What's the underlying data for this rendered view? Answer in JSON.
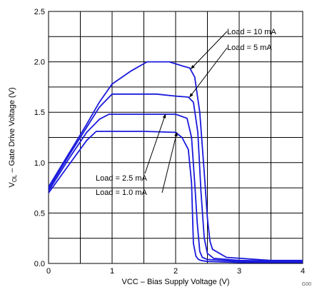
{
  "chart_data": {
    "type": "line",
    "xlabel": "VCC – Bias Supply Voltage (V)",
    "ylabel_main": "V",
    "ylabel_sub": "OL",
    "ylabel_rest": " – Gate Drive Voltage (V)",
    "xlim": [
      0,
      4
    ],
    "ylim": [
      0,
      2.5
    ],
    "x_ticks": [
      "0",
      "1",
      "2",
      "3",
      "4"
    ],
    "y_ticks": [
      "0.0",
      "0.5",
      "1.0",
      "1.5",
      "2.0",
      "2.5"
    ],
    "x_grid_step": 0.5,
    "y_grid_step": 0.25,
    "grid": true,
    "line_color": "#1a1adc",
    "series": [
      {
        "name": "Load = 10 mA",
        "x": [
          0,
          0.3,
          0.6,
          0.8,
          1.0,
          1.3,
          1.55,
          1.9,
          2.1,
          2.22,
          2.3,
          2.38,
          2.45,
          2.5,
          2.54,
          2.58,
          2.8,
          3.5,
          4.0
        ],
        "y": [
          0.76,
          1.07,
          1.38,
          1.6,
          1.78,
          1.91,
          2.0,
          2.0,
          1.96,
          1.94,
          1.85,
          1.5,
          0.9,
          0.45,
          0.22,
          0.14,
          0.06,
          0.03,
          0.03
        ]
      },
      {
        "name": "Load = 5 mA",
        "x": [
          0,
          0.3,
          0.6,
          0.8,
          1.0,
          1.3,
          1.7,
          2.0,
          2.2,
          2.28,
          2.35,
          2.4,
          2.45,
          2.5,
          2.6,
          3.0,
          4.0
        ],
        "y": [
          0.74,
          1.05,
          1.35,
          1.55,
          1.68,
          1.68,
          1.68,
          1.66,
          1.65,
          1.6,
          1.3,
          0.7,
          0.25,
          0.1,
          0.05,
          0.03,
          0.02
        ]
      },
      {
        "name": "Load = 2.5 mA",
        "x": [
          0,
          0.3,
          0.6,
          0.8,
          0.95,
          1.2,
          1.6,
          2.0,
          2.18,
          2.25,
          2.3,
          2.34,
          2.38,
          2.42,
          2.5,
          3.0,
          4.0
        ],
        "y": [
          0.72,
          1.02,
          1.3,
          1.43,
          1.48,
          1.48,
          1.48,
          1.48,
          1.44,
          1.25,
          0.8,
          0.4,
          0.12,
          0.06,
          0.04,
          0.02,
          0.02
        ]
      },
      {
        "name": "Load = 1.0 mA",
        "x": [
          0,
          0.3,
          0.6,
          0.75,
          1.0,
          1.5,
          2.0,
          2.1,
          2.2,
          2.25,
          2.28,
          2.32,
          2.36,
          2.4,
          2.5,
          3.0,
          4.0
        ],
        "y": [
          0.7,
          0.96,
          1.22,
          1.31,
          1.31,
          1.31,
          1.3,
          1.25,
          1.13,
          0.8,
          0.2,
          0.07,
          0.04,
          0.03,
          0.02,
          0.01,
          0.01
        ]
      }
    ],
    "annotations": [
      {
        "text": "Load = 10 mA",
        "series": 0,
        "at_x": 2.24,
        "at_y": 1.93
      },
      {
        "text": "Load = 5 mA",
        "series": 1,
        "at_x": 2.22,
        "at_y": 1.65
      },
      {
        "text": "Load = 2.5 mA",
        "series": 2,
        "at_x": 1.84,
        "at_y": 1.48
      },
      {
        "text": "Load = 1.0 mA",
        "series": 3,
        "at_x": 2.02,
        "at_y": 1.3
      }
    ],
    "figure_code": "G00"
  }
}
